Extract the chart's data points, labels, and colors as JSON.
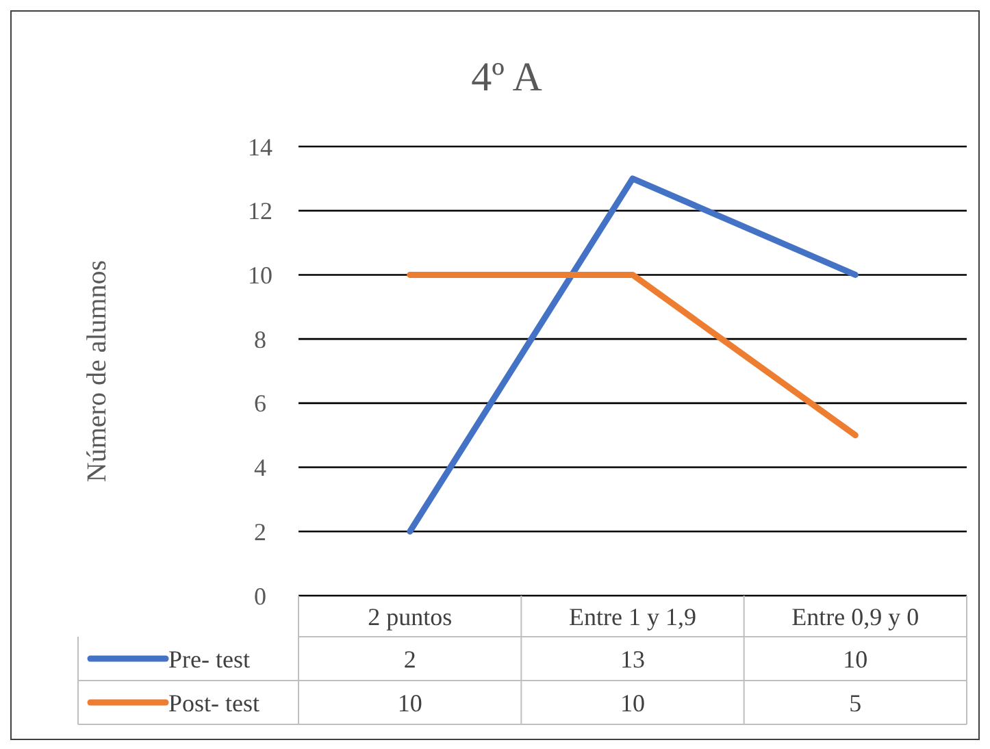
{
  "chart_data": {
    "type": "line",
    "title": "4º A",
    "ylabel": "Número de alumnos",
    "categories": [
      "2 puntos",
      "Entre 1 y 1,9",
      "Entre 0,9 y 0"
    ],
    "series": [
      {
        "name": "Pre- test",
        "color": "#4472c4",
        "values": [
          2,
          13,
          10
        ]
      },
      {
        "name": "Post- test",
        "color": "#ed7d31",
        "values": [
          10,
          10,
          5
        ]
      }
    ],
    "ylim": [
      0,
      14
    ],
    "yticks": [
      0,
      2,
      4,
      6,
      8,
      10,
      12,
      14
    ],
    "grid": "y",
    "legend": "bottom left",
    "data_labels": true,
    "marker": "none",
    "line_style": "solid"
  }
}
